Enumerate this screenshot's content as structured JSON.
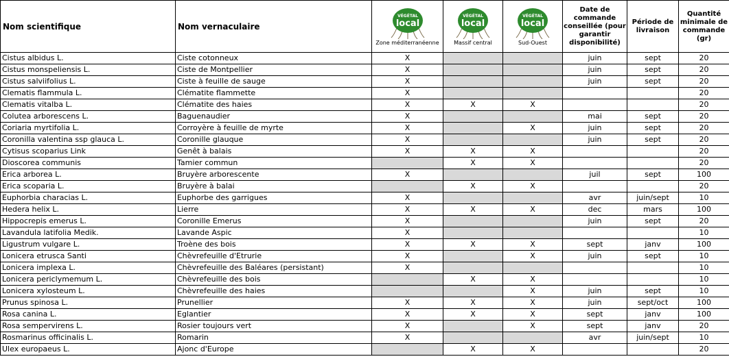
{
  "header": {
    "scientific_name": "Nom scientifique",
    "common_name": "Nom vernaculaire",
    "logos": [
      {
        "brand_top": "VÉGÉTAL",
        "brand_bottom": "local",
        "caption": "Zone méditerranéenne",
        "icon": "vegetal-local-logo"
      },
      {
        "brand_top": "VÉGÉTAL",
        "brand_bottom": "local",
        "caption": "Massif central",
        "icon": "vegetal-local-logo"
      },
      {
        "brand_top": "VÉGÉTAL",
        "brand_bottom": "local",
        "caption": "Sud-Ouest",
        "icon": "vegetal-local-logo"
      }
    ],
    "order_date": "Date de commande conseillée (pour garantir disponibilité)",
    "delivery": "Période de livraison",
    "min_qty": "Quantité minimale de commande (gr)"
  },
  "colors": {
    "logo_green": "#2e8b2e",
    "logo_dark": "#1f5f1f",
    "grey_cell": "#d9d9d9"
  },
  "rows": [
    {
      "sci": "Cistus albidus L.",
      "common": "Ciste cotonneux",
      "med": "X",
      "mc": "",
      "so": "",
      "mc_grey": true,
      "so_grey": true,
      "date": "juin",
      "period": "sept",
      "qty": "20"
    },
    {
      "sci": "Cistus monspeliensis L.",
      "common": "Ciste de Montpellier",
      "med": "X",
      "mc": "",
      "so": "",
      "mc_grey": true,
      "so_grey": true,
      "date": "juin",
      "period": "sept",
      "qty": "20"
    },
    {
      "sci": "Cistus salviifolius L.",
      "common": "Ciste à feuille de sauge",
      "med": "X",
      "mc": "",
      "so": "",
      "mc_grey": true,
      "so_grey": true,
      "date": "juin",
      "period": "sept",
      "qty": "20"
    },
    {
      "sci": "Clematis flammula L.",
      "common": "Clématite flammette",
      "med": "X",
      "mc": "",
      "so": "",
      "mc_grey": true,
      "so_grey": true,
      "date": "",
      "period": "",
      "qty": "20"
    },
    {
      "sci": "Clematis vitalba L.",
      "common": "Clématite des haies",
      "med": "X",
      "mc": "X",
      "so": "X",
      "date": "",
      "period": "",
      "qty": "20"
    },
    {
      "sci": "Colutea arborescens L.",
      "common": "Baguenaudier",
      "med": "X",
      "mc": "",
      "so": "",
      "mc_grey": true,
      "so_grey": true,
      "date": "mai",
      "period": "sept",
      "qty": "20"
    },
    {
      "sci": "Coriaria myrtifolia L.",
      "common": "Corroyère à feuille de myrte",
      "med": "X",
      "mc": "",
      "so": "X",
      "mc_grey": true,
      "date": "juin",
      "period": "sept",
      "qty": "20"
    },
    {
      "sci": "Coronilla valentina ssp glauca L.",
      "common": "Coronille glauque",
      "med": "X",
      "mc": "",
      "so": "",
      "mc_grey": true,
      "so_grey": true,
      "date": "juin",
      "period": "sept",
      "qty": "20"
    },
    {
      "sci": "Cytisus scoparius Link",
      "common": "Genêt à balais",
      "med": "X",
      "mc": "X",
      "so": "X",
      "date": "",
      "period": "",
      "qty": "20"
    },
    {
      "sci": "Dioscorea communis",
      "common": "Tamier commun",
      "med": "",
      "mc": "X",
      "so": "X",
      "med_grey": true,
      "date": "",
      "period": "",
      "qty": "20"
    },
    {
      "sci": "Erica arborea L.",
      "common": "Bruyère arborescente",
      "med": "X",
      "mc": "",
      "so": "",
      "mc_grey": true,
      "so_grey": true,
      "date": "juil",
      "period": "sept",
      "qty": "100"
    },
    {
      "sci": "Erica scoparia L.",
      "common": "Bruyère à balai",
      "med": "",
      "mc": "X",
      "so": "X",
      "med_grey": true,
      "date": "",
      "period": "",
      "qty": "20"
    },
    {
      "sci": "Euphorbia characias L.",
      "common": "Euphorbe des garrigues",
      "med": "X",
      "mc": "",
      "so": "",
      "mc_grey": true,
      "so_grey": true,
      "date": "avr",
      "period": "juin/sept",
      "qty": "10"
    },
    {
      "sci": "Hedera helix L.",
      "common": "Lierre",
      "med": "X",
      "mc": "X",
      "so": "X",
      "date": "dec",
      "period": "mars",
      "qty": "100"
    },
    {
      "sci": "Hippocrepis emerus L.",
      "common": "Coronille Emerus",
      "med": "X",
      "mc": "",
      "so": "",
      "mc_grey": true,
      "so_grey": true,
      "date": "juin",
      "period": "sept",
      "qty": "20"
    },
    {
      "sci": "Lavandula latifolia Medik.",
      "common": "Lavande Aspic",
      "med": "X",
      "mc": "",
      "so": "",
      "mc_grey": true,
      "so_grey": true,
      "date": "",
      "period": "",
      "qty": "10"
    },
    {
      "sci": "Ligustrum vulgare L.",
      "common": "Troène des bois",
      "med": "X",
      "mc": "X",
      "so": "X",
      "date": "sept",
      "period": "janv",
      "qty": "100"
    },
    {
      "sci": "Lonicera etrusca Santi",
      "common": "Chèvrefeuille d'Etrurie",
      "med": "X",
      "mc": "",
      "so": "X",
      "mc_grey": true,
      "date": "juin",
      "period": "sept",
      "qty": "10"
    },
    {
      "sci": "Lonicera implexa L.",
      "common": "Chèvrefeuille des Baléares (persistant)",
      "med": "X",
      "mc": "",
      "so": "",
      "mc_grey": true,
      "so_grey": true,
      "date": "",
      "period": "",
      "qty": "10"
    },
    {
      "sci": "Lonicera periclymemum L.",
      "common": "Chèvrefeuille des bois",
      "med": "",
      "mc": "X",
      "so": "X",
      "med_grey": true,
      "date": "",
      "period": "",
      "qty": "10"
    },
    {
      "sci": "Lonicera xylosteum L.",
      "common": "Chèvrefeuille des haies",
      "med": "",
      "mc": "",
      "so": "X",
      "med_grey": true,
      "mc_grey": true,
      "date": "juin",
      "period": "sept",
      "qty": "10"
    },
    {
      "sci": "Prunus spinosa L.",
      "common": "Prunellier",
      "med": "X",
      "mc": "X",
      "so": "X",
      "date": "juin",
      "period": "sept/oct",
      "qty": "100"
    },
    {
      "sci": "Rosa canina L.",
      "common": "Eglantier",
      "med": "X",
      "mc": "X",
      "so": "X",
      "date": "sept",
      "period": "janv",
      "qty": "100"
    },
    {
      "sci": "Rosa sempervirens L.",
      "common": "Rosier toujours vert",
      "med": "X",
      "mc": "",
      "so": "X",
      "mc_grey": true,
      "date": "sept",
      "period": "janv",
      "qty": "20"
    },
    {
      "sci": "Rosmarinus officinalis L.",
      "common": "Romarin",
      "med": "X",
      "mc": "",
      "so": "",
      "mc_grey": true,
      "so_grey": true,
      "date": "avr",
      "period": "juin/sept",
      "qty": "10"
    },
    {
      "sci": "Ulex europaeus L.",
      "common": "Ajonc d'Europe",
      "med": "",
      "mc": "X",
      "so": "X",
      "med_grey": true,
      "date": "",
      "period": "",
      "qty": "20"
    }
  ]
}
